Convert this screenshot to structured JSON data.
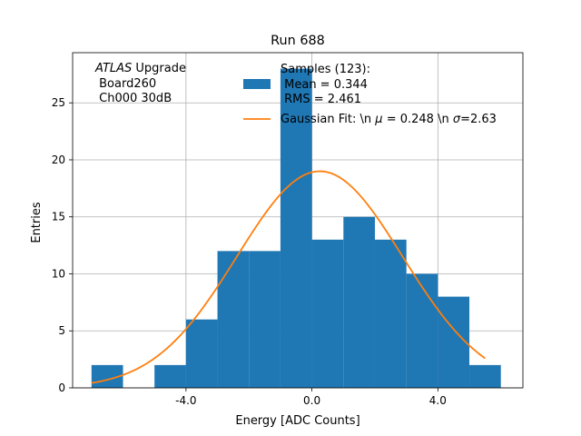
{
  "chart_data": {
    "type": "bar",
    "title": "Run 688",
    "xlabel": "Energy [ADC Counts]",
    "ylabel": "Entries",
    "xlim": [
      -7.6,
      6.7
    ],
    "ylim": [
      0,
      29.4
    ],
    "grid": true,
    "x_ticks": [
      -4.0,
      0.0,
      4.0
    ],
    "x_tick_labels": [
      "-4.0",
      "0.0",
      "4.0"
    ],
    "y_ticks": [
      0,
      5,
      10,
      15,
      20,
      25
    ],
    "y_tick_labels": [
      "0",
      "5",
      "10",
      "15",
      "20",
      "25"
    ],
    "bin_width": 1.0,
    "bins": [
      {
        "x0": -7.0,
        "x1": -6.0,
        "value": 2
      },
      {
        "x0": -6.0,
        "x1": -5.0,
        "value": 0
      },
      {
        "x0": -5.0,
        "x1": -4.0,
        "value": 2
      },
      {
        "x0": -4.0,
        "x1": -3.0,
        "value": 6
      },
      {
        "x0": -3.0,
        "x1": -2.0,
        "value": 12
      },
      {
        "x0": -2.0,
        "x1": -1.0,
        "value": 12
      },
      {
        "x0": -1.0,
        "x1": 0.0,
        "value": 28
      },
      {
        "x0": 0.0,
        "x1": 1.0,
        "value": 13
      },
      {
        "x0": 1.0,
        "x1": 2.0,
        "value": 15
      },
      {
        "x0": 2.0,
        "x1": 3.0,
        "value": 13
      },
      {
        "x0": 3.0,
        "x1": 4.0,
        "value": 10
      },
      {
        "x0": 4.0,
        "x1": 5.0,
        "value": 8
      },
      {
        "x0": 5.0,
        "x1": 6.0,
        "value": 2
      }
    ],
    "fit": {
      "type": "gaussian",
      "amplitude": 19.0,
      "mu": 0.248,
      "sigma": 2.63,
      "x_range": [
        -7.0,
        5.5
      ]
    },
    "series": [
      {
        "name": "Samples (123):\n Mean = 0.344\n RMS = 2.461",
        "kind": "histogram",
        "color": "#1f77b4"
      },
      {
        "name": "Gaussian Fit: \\n $\\mu$ = 0.248 \\n $\\sigma$=2.63",
        "kind": "line",
        "color": "#ff7f0e"
      }
    ],
    "legend": {
      "position": "top-right",
      "samples_lines": [
        "Samples (123):",
        " Mean = 0.344",
        " RMS = 2.461"
      ],
      "fit_label_prefix": "Gaussian Fit: \\n ",
      "fit_mu_symbol": "μ",
      "fit_mu_value": " = 0.248 \\n ",
      "fit_sigma_symbol": "σ",
      "fit_sigma_value": "=2.63"
    },
    "annotation": {
      "atlas": "ATLAS",
      "upgrade": " Upgrade",
      "board": " Board260",
      "channel": " Ch000 30dB"
    }
  }
}
